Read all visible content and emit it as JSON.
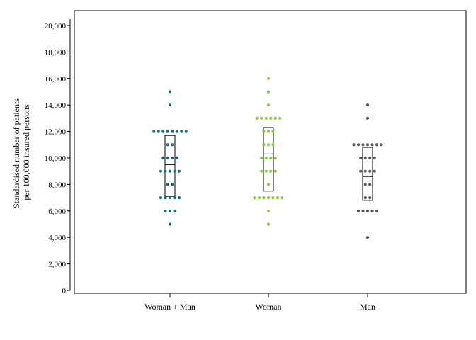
{
  "chart_data": {
    "type": "scatter",
    "subtype": "dot-plot-with-boxes",
    "title": "",
    "ylabel_line1": "Standardised number of patients",
    "ylabel_line2": "per 100,000 insured persons",
    "xlabel": "",
    "ylim": [
      0,
      21000
    ],
    "yticks": [
      0,
      2000,
      4000,
      6000,
      8000,
      10000,
      12000,
      14000,
      16000,
      18000,
      20000
    ],
    "ytick_labels": [
      "0",
      "2,000",
      "4,000",
      "6,000",
      "8,000",
      "10,000",
      "12,000",
      "14,000",
      "16,000",
      "18,000",
      "20,000"
    ],
    "categories": [
      "Woman + Man",
      "Woman",
      "Man"
    ],
    "grid": false,
    "legend": "none",
    "series": [
      {
        "category": "Woman + Man",
        "color": "#1f6b75",
        "box": {
          "q1": 7100,
          "median": 9500,
          "q3": 11700
        },
        "values": [
          5000,
          6000,
          6000,
          6000,
          7000,
          7000,
          7000,
          7000,
          7000,
          8000,
          8000,
          9000,
          9000,
          9000,
          9000,
          9000,
          10000,
          10000,
          10000,
          10000,
          11000,
          11000,
          12000,
          12000,
          12000,
          12000,
          12000,
          12000,
          12000,
          12000,
          14000,
          15000
        ]
      },
      {
        "category": "Woman",
        "color": "#8cc63f",
        "box": {
          "q1": 7500,
          "median": 10300,
          "q3": 12300
        },
        "values": [
          5000,
          6000,
          7000,
          7000,
          7000,
          7000,
          7000,
          7000,
          7000,
          8000,
          9000,
          9000,
          9000,
          9000,
          10000,
          10000,
          10000,
          10000,
          11000,
          11000,
          11000,
          12000,
          12000,
          12000,
          13000,
          13000,
          13000,
          13000,
          13000,
          13000,
          14000,
          15000,
          16000
        ]
      },
      {
        "category": "Man",
        "color": "#555555",
        "box": {
          "q1": 6800,
          "median": 8600,
          "q3": 10800
        },
        "values": [
          4000,
          6000,
          6000,
          6000,
          6000,
          6000,
          7000,
          7000,
          8000,
          8000,
          9000,
          9000,
          9000,
          9000,
          10000,
          10000,
          10000,
          10000,
          11000,
          11000,
          11000,
          11000,
          11000,
          11000,
          11000,
          13000,
          14000
        ]
      }
    ]
  }
}
